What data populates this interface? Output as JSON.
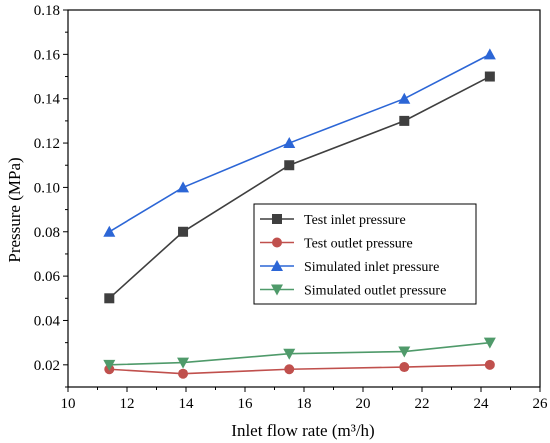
{
  "chart_data": {
    "type": "line",
    "title": "",
    "xlabel": "Inlet flow rate (m³/h)",
    "ylabel": "Pressure (MPa)",
    "xlim": [
      10,
      26
    ],
    "ylim": [
      0.01,
      0.18
    ],
    "xticks": [
      "10",
      "12",
      "14",
      "16",
      "18",
      "20",
      "22",
      "24",
      "26"
    ],
    "yticks": [
      "0.02",
      "0.04",
      "0.06",
      "0.08",
      "0.10",
      "0.12",
      "0.14",
      "0.16",
      "0.18"
    ],
    "x": [
      11.4,
      13.9,
      17.5,
      21.4,
      24.3
    ],
    "grid": false,
    "legend_position": "center-right",
    "series": [
      {
        "name": "Test inlet pressure",
        "values": [
          0.05,
          0.08,
          0.11,
          0.13,
          0.15
        ],
        "color": "#3f3f3f",
        "marker": "square"
      },
      {
        "name": "Test outlet pressure",
        "values": [
          0.018,
          0.016,
          0.018,
          0.019,
          0.02
        ],
        "color": "#c0504d",
        "marker": "circle"
      },
      {
        "name": "Simulated inlet pressure",
        "values": [
          0.08,
          0.1,
          0.12,
          0.14,
          0.16
        ],
        "color": "#2c66d6",
        "marker": "triangle-up"
      },
      {
        "name": "Simulated outlet pressure",
        "values": [
          0.02,
          0.021,
          0.025,
          0.026,
          0.03
        ],
        "color": "#4f9a6a",
        "marker": "triangle-down"
      }
    ]
  }
}
